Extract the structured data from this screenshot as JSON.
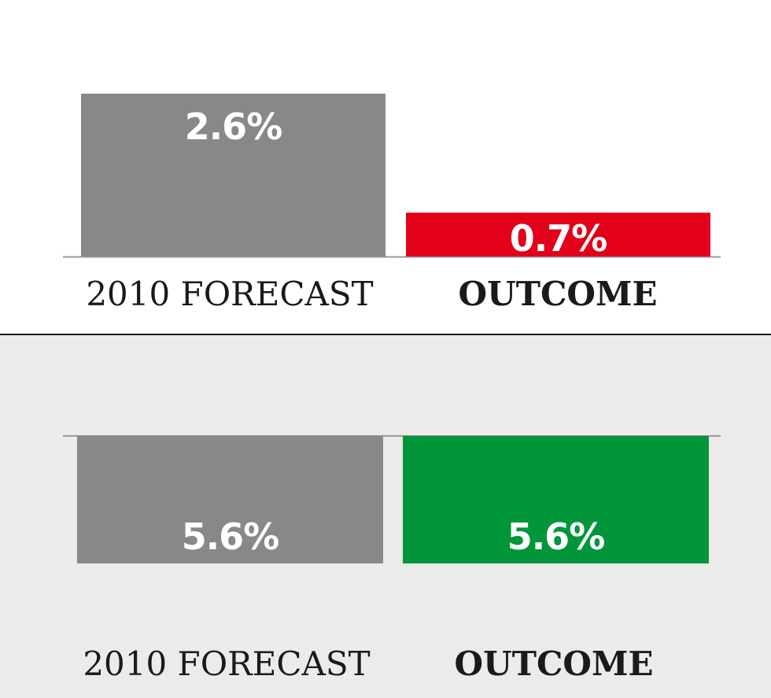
{
  "chart_data": [
    {
      "type": "bar",
      "direction": "positive",
      "categories": [
        "2010 FORECAST",
        "OUTCOME"
      ],
      "values": [
        2.6,
        0.7
      ],
      "value_labels": [
        "2.6%",
        "0.7%"
      ],
      "colors": [
        "#87888a",
        "#e2001a"
      ],
      "title": "",
      "xlabel": "",
      "ylabel": "",
      "ylim": [
        0,
        2.6
      ],
      "grid": false
    },
    {
      "type": "bar",
      "direction": "negative",
      "categories": [
        "2010 FORECAST",
        "OUTCOME"
      ],
      "values": [
        5.6,
        5.6
      ],
      "value_labels": [
        "5.6%",
        "5.6%"
      ],
      "colors": [
        "#87888a",
        "#009639"
      ],
      "title": "",
      "xlabel": "",
      "ylabel": "",
      "ylim": [
        0,
        5.6
      ],
      "grid": false
    }
  ]
}
